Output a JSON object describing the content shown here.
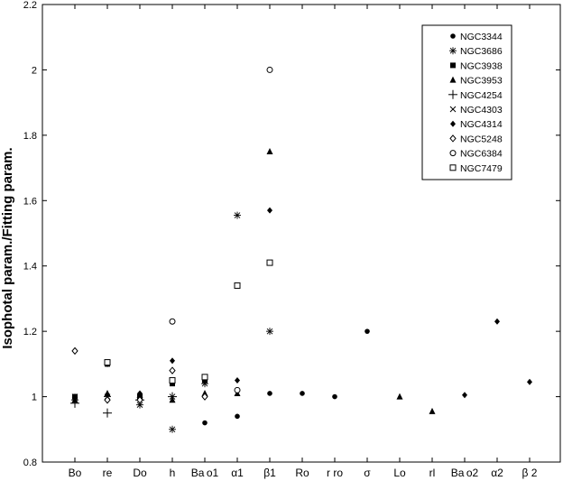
{
  "chart_data": {
    "type": "scatter",
    "title": "",
    "xlabel": "",
    "ylabel": "Isophotal param./Fitting param.",
    "ylim": [
      0.8,
      2.2
    ],
    "yticks": [
      "0.8",
      "1",
      "1.2",
      "1.4",
      "1.6",
      "1.8",
      "2",
      "2.2"
    ],
    "categories": [
      "Bo",
      "re",
      "Do",
      "h",
      "Ba o1",
      "α1",
      "β1",
      "Ro",
      "r ro",
      "σ",
      "Lo",
      "rl",
      "Ba o2",
      "α2",
      "β 2"
    ],
    "legend_position": "top-right",
    "grid": false,
    "series": [
      {
        "name": "NGC3344",
        "marker": "filled-circle",
        "points": [
          [
            4,
            0.92
          ],
          [
            5,
            0.94
          ],
          [
            6,
            1.01
          ],
          [
            7,
            1.01
          ],
          [
            8,
            1.0
          ],
          [
            9,
            1.2
          ]
        ]
      },
      {
        "name": "NGC3686",
        "marker": "asterisk",
        "points": [
          [
            0,
            0.99
          ],
          [
            1,
            1.0
          ],
          [
            2,
            0.975
          ],
          [
            3,
            0.9
          ],
          [
            4,
            1.04
          ],
          [
            5,
            1.555
          ],
          [
            6,
            1.2
          ]
        ]
      },
      {
        "name": "NGC3938",
        "marker": "filled-square",
        "points": [
          [
            0,
            1.0
          ],
          [
            1,
            1.1
          ],
          [
            2,
            1.0
          ],
          [
            3,
            1.04
          ],
          [
            4,
            1.05
          ]
        ]
      },
      {
        "name": "NGC3953",
        "marker": "filled-triangle",
        "points": [
          [
            0,
            0.99
          ],
          [
            1,
            1.01
          ],
          [
            2,
            1.005
          ],
          [
            3,
            0.99
          ],
          [
            4,
            1.01
          ],
          [
            5,
            1.01
          ],
          [
            6,
            1.75
          ],
          [
            10,
            1.0
          ],
          [
            11,
            0.955
          ]
        ]
      },
      {
        "name": "NGC4254",
        "marker": "plus",
        "points": [
          [
            0,
            0.98
          ],
          [
            1,
            0.95
          ],
          [
            2,
            0.99
          ],
          [
            3,
            1.0
          ]
        ]
      },
      {
        "name": "NGC4303",
        "marker": "cross",
        "points": [
          [
            0,
            1.0
          ],
          [
            2,
            1.0
          ],
          [
            3,
            1.0
          ]
        ]
      },
      {
        "name": "NGC4314",
        "marker": "filled-diamond",
        "points": [
          [
            0,
            1.0
          ],
          [
            1,
            1.1
          ],
          [
            2,
            1.01
          ],
          [
            3,
            1.11
          ],
          [
            4,
            1.05
          ],
          [
            5,
            1.05
          ],
          [
            6,
            1.57
          ],
          [
            12,
            1.005
          ],
          [
            13,
            1.23
          ],
          [
            14,
            1.045
          ]
        ]
      },
      {
        "name": "NGC5248",
        "marker": "open-diamond",
        "points": [
          [
            0,
            1.14
          ],
          [
            1,
            0.99
          ],
          [
            2,
            0.99
          ],
          [
            3,
            1.08
          ],
          [
            4,
            1.0
          ]
        ]
      },
      {
        "name": "NGC6384",
        "marker": "open-circle",
        "points": [
          [
            3,
            1.23
          ],
          [
            5,
            1.02
          ],
          [
            6,
            2.0
          ]
        ]
      },
      {
        "name": "NGC7479",
        "marker": "open-square",
        "points": [
          [
            1,
            1.105
          ],
          [
            3,
            1.05
          ],
          [
            4,
            1.06
          ],
          [
            5,
            1.34
          ],
          [
            6,
            1.41
          ]
        ]
      }
    ]
  }
}
